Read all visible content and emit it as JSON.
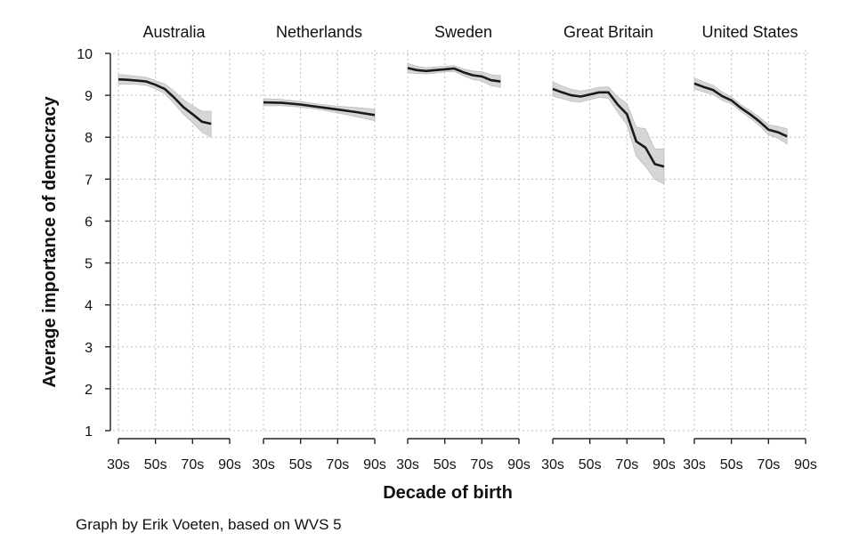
{
  "chart_data": {
    "type": "line",
    "ylabel": "Average importance of democracy",
    "xlabel": "Decade of birth",
    "caption": "Graph by Erik Voeten, based on WVS 5",
    "ylim": [
      1,
      10
    ],
    "yticks": [
      1,
      2,
      3,
      4,
      5,
      6,
      7,
      8,
      9,
      10
    ],
    "xlim": [
      30,
      90
    ],
    "xticks": [
      30,
      50,
      70,
      90
    ],
    "xtick_labels": [
      "30s",
      "50s",
      "70s",
      "90s"
    ],
    "grid": true,
    "panels": [
      {
        "title": "Australia",
        "series": [
          {
            "x": [
              30,
              35,
              40,
              45,
              50,
              55,
              60,
              65,
              70,
              75,
              80
            ],
            "y": [
              9.38,
              9.37,
              9.35,
              9.33,
              9.25,
              9.15,
              8.95,
              8.72,
              8.55,
              8.37,
              8.32
            ],
            "lower": [
              9.26,
              9.27,
              9.26,
              9.24,
              9.16,
              9.04,
              8.81,
              8.55,
              8.35,
              8.12,
              8.0
            ],
            "upper": [
              9.5,
              9.48,
              9.45,
              9.43,
              9.35,
              9.27,
              9.1,
              8.9,
              8.75,
              8.62,
              8.62
            ]
          }
        ]
      },
      {
        "title": "Netherlands",
        "series": [
          {
            "x": [
              30,
              40,
              50,
              60,
              70,
              80,
              90
            ],
            "y": [
              8.83,
              8.82,
              8.78,
              8.72,
              8.66,
              8.6,
              8.53
            ],
            "lower": [
              8.75,
              8.75,
              8.72,
              8.66,
              8.58,
              8.49,
              8.39
            ],
            "upper": [
              8.92,
              8.9,
              8.85,
              8.79,
              8.74,
              8.71,
              8.67
            ]
          }
        ]
      },
      {
        "title": "Sweden",
        "series": [
          {
            "x": [
              30,
              35,
              40,
              45,
              50,
              55,
              60,
              65,
              70,
              75,
              80
            ],
            "y": [
              9.65,
              9.6,
              9.58,
              9.6,
              9.62,
              9.64,
              9.55,
              9.48,
              9.45,
              9.36,
              9.33
            ],
            "lower": [
              9.54,
              9.52,
              9.51,
              9.53,
              9.56,
              9.57,
              9.47,
              9.38,
              9.34,
              9.23,
              9.19
            ],
            "upper": [
              9.76,
              9.69,
              9.66,
              9.68,
              9.69,
              9.71,
              9.63,
              9.58,
              9.56,
              9.49,
              9.47
            ]
          }
        ]
      },
      {
        "title": "Great Britain",
        "series": [
          {
            "x": [
              30,
              35,
              40,
              45,
              50,
              55,
              60,
              65,
              70,
              75,
              80,
              85,
              90
            ],
            "y": [
              9.15,
              9.07,
              9.0,
              8.97,
              9.02,
              9.07,
              9.07,
              8.78,
              8.55,
              7.9,
              7.75,
              7.36,
              7.3
            ],
            "lower": [
              8.98,
              8.92,
              8.86,
              8.84,
              8.9,
              8.95,
              8.93,
              8.6,
              8.3,
              7.55,
              7.3,
              7.0,
              6.88
            ],
            "upper": [
              9.32,
              9.22,
              9.14,
              9.1,
              9.14,
              9.19,
              9.2,
              8.96,
              8.8,
              8.24,
              8.2,
              7.72,
              7.72
            ]
          }
        ]
      },
      {
        "title": "United States",
        "series": [
          {
            "x": [
              30,
              35,
              40,
              45,
              50,
              55,
              60,
              65,
              70,
              75,
              80
            ],
            "y": [
              9.28,
              9.2,
              9.13,
              8.98,
              8.88,
              8.7,
              8.55,
              8.38,
              8.18,
              8.12,
              8.02
            ],
            "lower": [
              9.15,
              9.08,
              9.02,
              8.88,
              8.8,
              8.62,
              8.46,
              8.28,
              8.06,
              7.98,
              7.84
            ],
            "upper": [
              9.41,
              9.32,
              9.24,
              9.08,
              8.96,
              8.78,
              8.64,
              8.48,
              8.3,
              8.26,
              8.2
            ]
          }
        ]
      }
    ]
  }
}
